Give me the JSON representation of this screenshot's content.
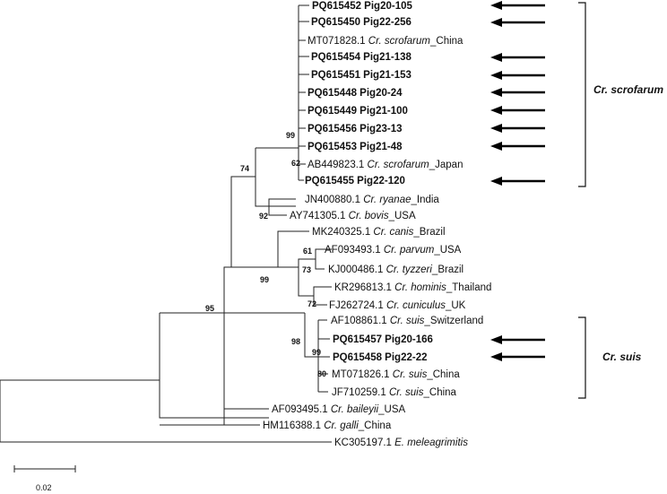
{
  "taxa": {
    "t1": [
      {
        "t": "PQ615452 Pig20-105",
        "b": true
      }
    ],
    "t2": [
      {
        "t": "PQ615450 Pig22-256",
        "b": true
      }
    ],
    "t3": [
      {
        "t": "MT071828.1 "
      },
      {
        "t": "Cr. scrofarum",
        "i": true
      },
      {
        "t": "_China"
      }
    ],
    "t4": [
      {
        "t": "PQ615454 Pig21-138",
        "b": true
      }
    ],
    "t5": [
      {
        "t": "PQ615451 Pig21-153",
        "b": true
      }
    ],
    "t6": [
      {
        "t": "PQ615448 Pig20-24",
        "b": true
      }
    ],
    "t7": [
      {
        "t": "PQ615449 Pig21-100",
        "b": true
      }
    ],
    "t8": [
      {
        "t": "PQ615456 Pig23-13",
        "b": true
      }
    ],
    "t9": [
      {
        "t": "PQ615453 Pig21-48",
        "b": true
      }
    ],
    "t10": [
      {
        "t": "AB449823.1 "
      },
      {
        "t": "Cr. scrofarum",
        "i": true
      },
      {
        "t": "_Japan"
      }
    ],
    "t11": [
      {
        "t": "PQ615455 Pig22-120",
        "b": true
      }
    ],
    "t12": [
      {
        "t": "JN400880.1 "
      },
      {
        "t": "Cr. ryanae",
        "i": true
      },
      {
        "t": "_India"
      }
    ],
    "t13": [
      {
        "t": "AY741305.1 "
      },
      {
        "t": "Cr. bovis",
        "i": true
      },
      {
        "t": "_USA"
      }
    ],
    "t14": [
      {
        "t": "MK240325.1 "
      },
      {
        "t": "Cr. canis",
        "i": true
      },
      {
        "t": "_Brazil"
      }
    ],
    "t15": [
      {
        "t": "AF093493.1 "
      },
      {
        "t": "Cr. parvum",
        "i": true
      },
      {
        "t": "_USA"
      }
    ],
    "t16": [
      {
        "t": "KJ000486.1 "
      },
      {
        "t": "Cr. tyzzeri",
        "i": true
      },
      {
        "t": "_Brazil"
      }
    ],
    "t17": [
      {
        "t": "KR296813.1 "
      },
      {
        "t": "Cr. hominis",
        "i": true
      },
      {
        "t": "_Thailand"
      }
    ],
    "t18": [
      {
        "t": "FJ262724.1 "
      },
      {
        "t": "Cr. cuniculus",
        "i": true
      },
      {
        "t": "_UK"
      }
    ],
    "t19": [
      {
        "t": "AF108861.1 "
      },
      {
        "t": "Cr. suis",
        "i": true
      },
      {
        "t": "_Switzerland"
      }
    ],
    "t20": [
      {
        "t": "PQ615457 Pig20-166",
        "b": true
      }
    ],
    "t21": [
      {
        "t": "PQ615458 Pig22-22",
        "b": true
      }
    ],
    "t22": [
      {
        "t": "MT071826.1 "
      },
      {
        "t": "Cr. suis",
        "i": true
      },
      {
        "t": "_China"
      }
    ],
    "t23": [
      {
        "t": "JF710259.1 "
      },
      {
        "t": "Cr. suis",
        "i": true
      },
      {
        "t": "_China"
      }
    ],
    "t24": [
      {
        "t": "AF093495.1 "
      },
      {
        "t": "Cr. baileyii",
        "i": true
      },
      {
        "t": "_USA"
      }
    ],
    "t25": [
      {
        "t": "HM116388.1 "
      },
      {
        "t": "Cr. galli",
        "i": true
      },
      {
        "t": "_China"
      }
    ],
    "t26": [
      {
        "t": "KC305197.1 "
      },
      {
        "t": "E. meleagrimitis",
        "i": true
      }
    ]
  },
  "bootstrap": {
    "b99_scrofarum": "99",
    "b62": "62",
    "b74": "74",
    "b92": "92",
    "b61": "61",
    "b73": "73",
    "b72": "72",
    "b99_canis": "99",
    "b95": "95",
    "b98": "98",
    "b99_suis": "99",
    "b80": "80"
  },
  "clades": {
    "scrofarum": "Cr. scrofarum",
    "suis": "Cr. suis"
  },
  "scale_bar": {
    "label": "0.02"
  }
}
